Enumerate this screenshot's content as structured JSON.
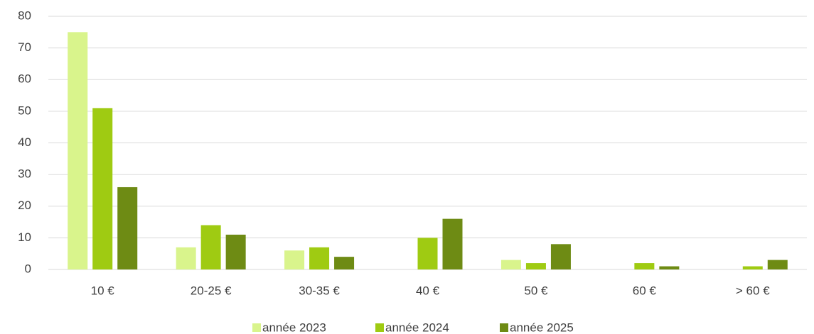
{
  "chart_data": {
    "type": "bar",
    "categories": [
      "10 €",
      "20-25 €",
      "30-35 €",
      "40 €",
      "50 €",
      "60 €",
      "> 60 €"
    ],
    "series": [
      {
        "name": "année 2023",
        "color": "#d9f48c",
        "values": [
          75,
          7,
          6,
          0,
          3,
          0,
          0
        ]
      },
      {
        "name": "année 2024",
        "color": "#9fcb12",
        "values": [
          51,
          14,
          7,
          10,
          2,
          2,
          1
        ]
      },
      {
        "name": "année 2025",
        "color": "#6e8b14",
        "values": [
          26,
          11,
          4,
          16,
          8,
          1,
          3
        ]
      }
    ],
    "ylim": [
      0,
      80
    ],
    "yticks": [
      0,
      10,
      20,
      30,
      40,
      50,
      60,
      70,
      80
    ],
    "grid": true,
    "legend": "bottom"
  }
}
